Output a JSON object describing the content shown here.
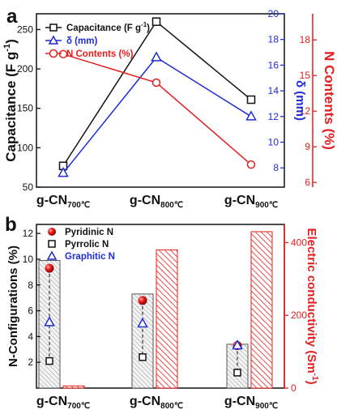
{
  "colors": {
    "black": "#111111",
    "blue": "#1e2bd6",
    "red": "#e41e1e",
    "hatch_gray": "#7a7a7a"
  },
  "chart_data": [
    {
      "type": "line",
      "panel_label": "a",
      "categories": [
        "g-CN700℃",
        "g-CN800℃",
        "g-CN900℃"
      ],
      "tick_labels": [
        {
          "main": "g-CN",
          "sub": "700℃"
        },
        {
          "main": "g-CN",
          "sub": "800℃"
        },
        {
          "main": "g-CN",
          "sub": "900℃"
        }
      ],
      "axes": {
        "left": {
          "label": "Capacitance (F g",
          "label_sup": "-1",
          "label_end": ")",
          "range": [
            50,
            270
          ],
          "ticks": [
            "50",
            "100",
            "150",
            "200",
            "250"
          ],
          "tick_values": [
            50,
            100,
            150,
            200,
            250
          ]
        },
        "right1": {
          "label": "δ (mm)",
          "range": [
            6.5,
            20
          ],
          "ticks": [
            "8",
            "10",
            "12",
            "14",
            "16",
            "18",
            "20"
          ],
          "tick_values": [
            8,
            10,
            12,
            14,
            16,
            18,
            20
          ]
        },
        "right2": {
          "label": "N Contents (%)",
          "range": [
            5.6,
            20.2
          ],
          "ticks": [
            "6",
            "9",
            "12",
            "15",
            "18"
          ],
          "tick_values": [
            6,
            9,
            12,
            15,
            18
          ]
        }
      },
      "series": [
        {
          "name": "Capacitance (F g",
          "name_sup": "-1",
          "name_end": ")",
          "marker": "square",
          "color": "#111111",
          "axis": "left",
          "values": [
            77,
            260,
            161
          ]
        },
        {
          "name": "δ (mm)",
          "marker": "triangle",
          "color": "#1e2bd6",
          "axis": "right1",
          "values": [
            7.6,
            16.6,
            12.0
          ]
        },
        {
          "name": "N Contents (%)",
          "marker": "circle",
          "color": "#e41e1e",
          "axis": "right2",
          "values": [
            16.8,
            14.4,
            7.5
          ]
        }
      ],
      "legend_placement": "top-left"
    },
    {
      "type": "bar",
      "panel_label": "b",
      "categories": [
        "g-CN700℃",
        "g-CN800℃",
        "g-CN900℃"
      ],
      "tick_labels": [
        {
          "main": "g-CN",
          "sub": "700℃"
        },
        {
          "main": "g-CN",
          "sub": "800℃"
        },
        {
          "main": "g-CN",
          "sub": "900℃"
        }
      ],
      "axes": {
        "left": {
          "label": "N-Configurations (%)",
          "range": [
            0,
            12.7
          ],
          "ticks": [
            "2",
            "4",
            "6",
            "8",
            "10",
            "12"
          ],
          "tick_values": [
            2,
            4,
            6,
            8,
            10,
            12
          ]
        },
        "right": {
          "label": "Electric conductivity (Sm",
          "label_sup": "-1",
          "label_end": ")",
          "range": [
            0,
            450
          ],
          "ticks": [
            "0",
            "200",
            "400"
          ],
          "tick_values": [
            0,
            200,
            400
          ]
        }
      },
      "bars_left": {
        "axis": "left",
        "values": [
          9.9,
          7.3,
          3.4
        ]
      },
      "bars_right": {
        "axis": "right",
        "values": [
          6,
          380,
          430
        ]
      },
      "series": [
        {
          "name": "Pyridinic N",
          "marker": "sphere",
          "color": "#e41e1e",
          "values": [
            9.3,
            6.8,
            3.3
          ]
        },
        {
          "name": "Pyrrolic N",
          "marker": "square",
          "color": "#111111",
          "values": [
            2.1,
            2.4,
            1.2
          ]
        },
        {
          "name": "Graphitic N",
          "marker": "triangle",
          "color": "#1e2bd6",
          "values": [
            5.1,
            5.0,
            3.3
          ]
        }
      ],
      "legend_placement": "top-left"
    }
  ]
}
